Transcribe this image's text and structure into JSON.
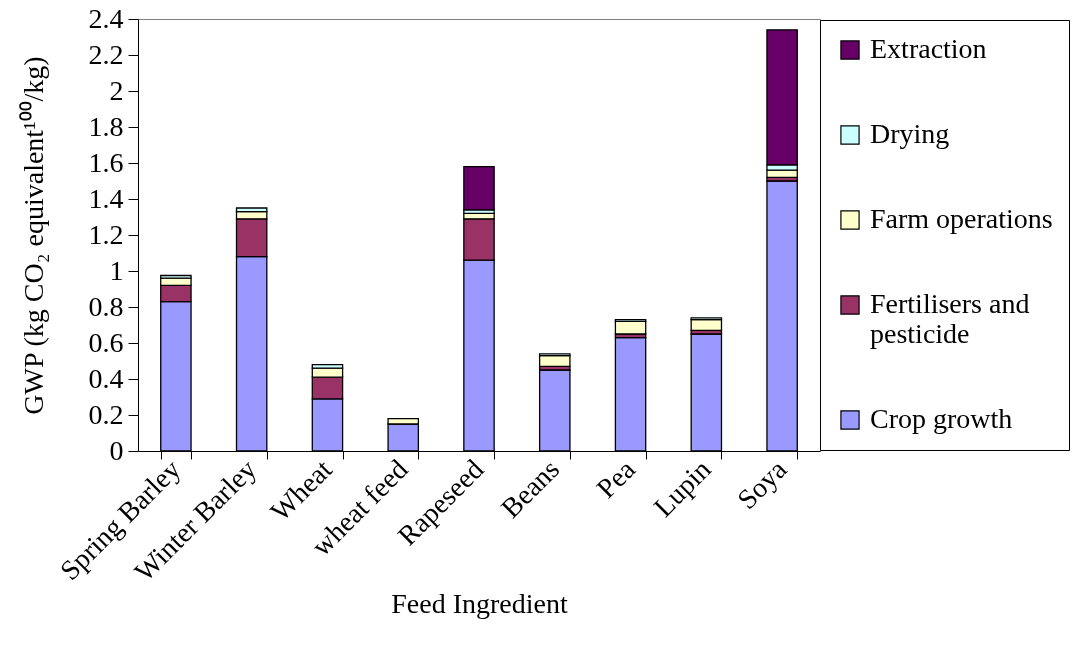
{
  "chart_data": {
    "type": "bar",
    "stacked": true,
    "xlabel": "Feed Ingredient",
    "ylabel": "GWP (kg CO₂ equivalent¹⁰⁰/kg)",
    "categories": [
      "Spring Barley",
      "Winter Barley",
      "Wheat",
      "wheat feed",
      "Rapeseed",
      "Beans",
      "Pea",
      "Lupin",
      "Soya"
    ],
    "series": [
      {
        "name": "Crop growth",
        "color": "#9999ff",
        "values": [
          0.83,
          1.08,
          0.29,
          0.15,
          1.06,
          0.45,
          0.63,
          0.65,
          1.5
        ]
      },
      {
        "name": "Fertilisers and pesticide",
        "color": "#993366",
        "values": [
          0.09,
          0.21,
          0.12,
          null,
          0.23,
          0.02,
          0.02,
          0.02,
          0.02
        ]
      },
      {
        "name": "Farm operations",
        "color": "#ffffcc",
        "values": [
          0.04,
          0.04,
          0.05,
          0.03,
          0.03,
          0.06,
          0.07,
          0.06,
          0.04
        ]
      },
      {
        "name": "Drying",
        "color": "#ccffff",
        "values": [
          0.015,
          0.02,
          0.02,
          null,
          0.02,
          0.01,
          0.01,
          0.01,
          0.03
        ]
      },
      {
        "name": "Extraction",
        "color": "#660066",
        "values": [
          null,
          null,
          null,
          null,
          0.24,
          null,
          null,
          null,
          0.75
        ]
      }
    ],
    "ylim": [
      0,
      2.4
    ],
    "yticks": [
      0,
      0.2,
      0.4,
      0.6,
      0.8,
      1,
      1.2,
      1.4,
      1.6,
      1.8,
      2,
      2.2,
      2.4
    ],
    "grid": false,
    "legend": "right"
  }
}
